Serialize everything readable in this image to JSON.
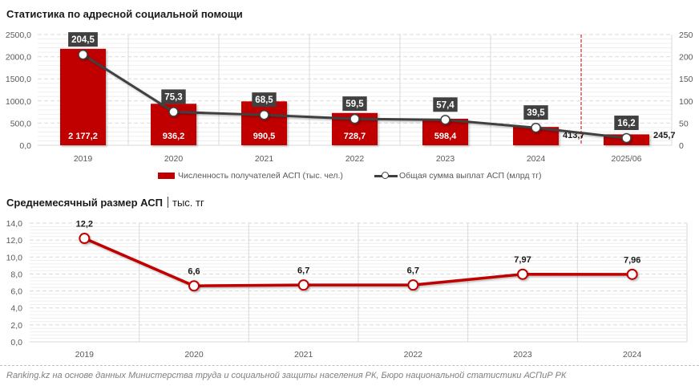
{
  "chart_data": [
    {
      "type": "bar",
      "title": "Статистика по адресной социальной помощи",
      "categories": [
        "2019",
        "2020",
        "2021",
        "2022",
        "2023",
        "2024",
        "2025/06"
      ],
      "series": [
        {
          "name": "Численность получателей АСП (тыс. чел.)",
          "type": "bar",
          "axis": "left",
          "color": "#C00000",
          "values": [
            2177.2,
            936.2,
            990.5,
            728.7,
            598.4,
            413.7,
            245.7
          ],
          "labels": [
            "2 177,2",
            "936,2",
            "990,5",
            "728,7",
            "598,4",
            "413,7",
            "245,7"
          ]
        },
        {
          "name": "Общая сумма выплат АСП (млрд тг)",
          "type": "line",
          "axis": "right",
          "color": "#404040",
          "values": [
            204.5,
            75.3,
            68.5,
            59.5,
            57.4,
            39.5,
            16.2
          ],
          "labels": [
            "204,5",
            "75,3",
            "68,5",
            "59,5",
            "57,4",
            "39,5",
            "16,2"
          ]
        }
      ],
      "y_left": {
        "range": [
          0,
          2500
        ],
        "ticks": [
          0,
          500,
          1000,
          1500,
          2000,
          2500
        ],
        "tick_labels": [
          "0,0",
          "500,0",
          "1000,0",
          "1500,0",
          "2000,0",
          "2500,0"
        ]
      },
      "y_right": {
        "range": [
          0,
          250
        ],
        "ticks": [
          0,
          50,
          100,
          150,
          200,
          250
        ],
        "tick_labels": [
          "0",
          "50",
          "100",
          "150",
          "200",
          "250"
        ]
      },
      "xlabel": "",
      "ylabel": "",
      "grid": true,
      "separator_after_category": "2024",
      "separator_color": "#C00000",
      "legend": "bottom"
    },
    {
      "type": "line",
      "title": "Среднемесячный размер АСП",
      "unit": "тыс. тг",
      "categories": [
        "2019",
        "2020",
        "2021",
        "2022",
        "2023",
        "2024"
      ],
      "series": [
        {
          "name": "Среднемесячный размер АСП",
          "color": "#C00000",
          "values": [
            12.2,
            6.6,
            6.7,
            6.7,
            7.97,
            7.96
          ],
          "labels": [
            "12,2",
            "6,6",
            "6,7",
            "6,7",
            "7,97",
            "7,96"
          ]
        }
      ],
      "ylim": [
        0,
        14
      ],
      "yticks": [
        0,
        2,
        4,
        6,
        8,
        10,
        12,
        14
      ],
      "ytick_labels": [
        "0,0",
        "2,0",
        "4,0",
        "6,0",
        "8,0",
        "10,0",
        "12,0",
        "14,0"
      ],
      "xlabel": "",
      "ylabel": "",
      "grid": true,
      "legend": "none"
    }
  ],
  "footer": {
    "source": "Ranking.kz на основе данных Министерства труда и социальной защиты населения РК, Бюро национальной статистики АСПиР РК"
  }
}
